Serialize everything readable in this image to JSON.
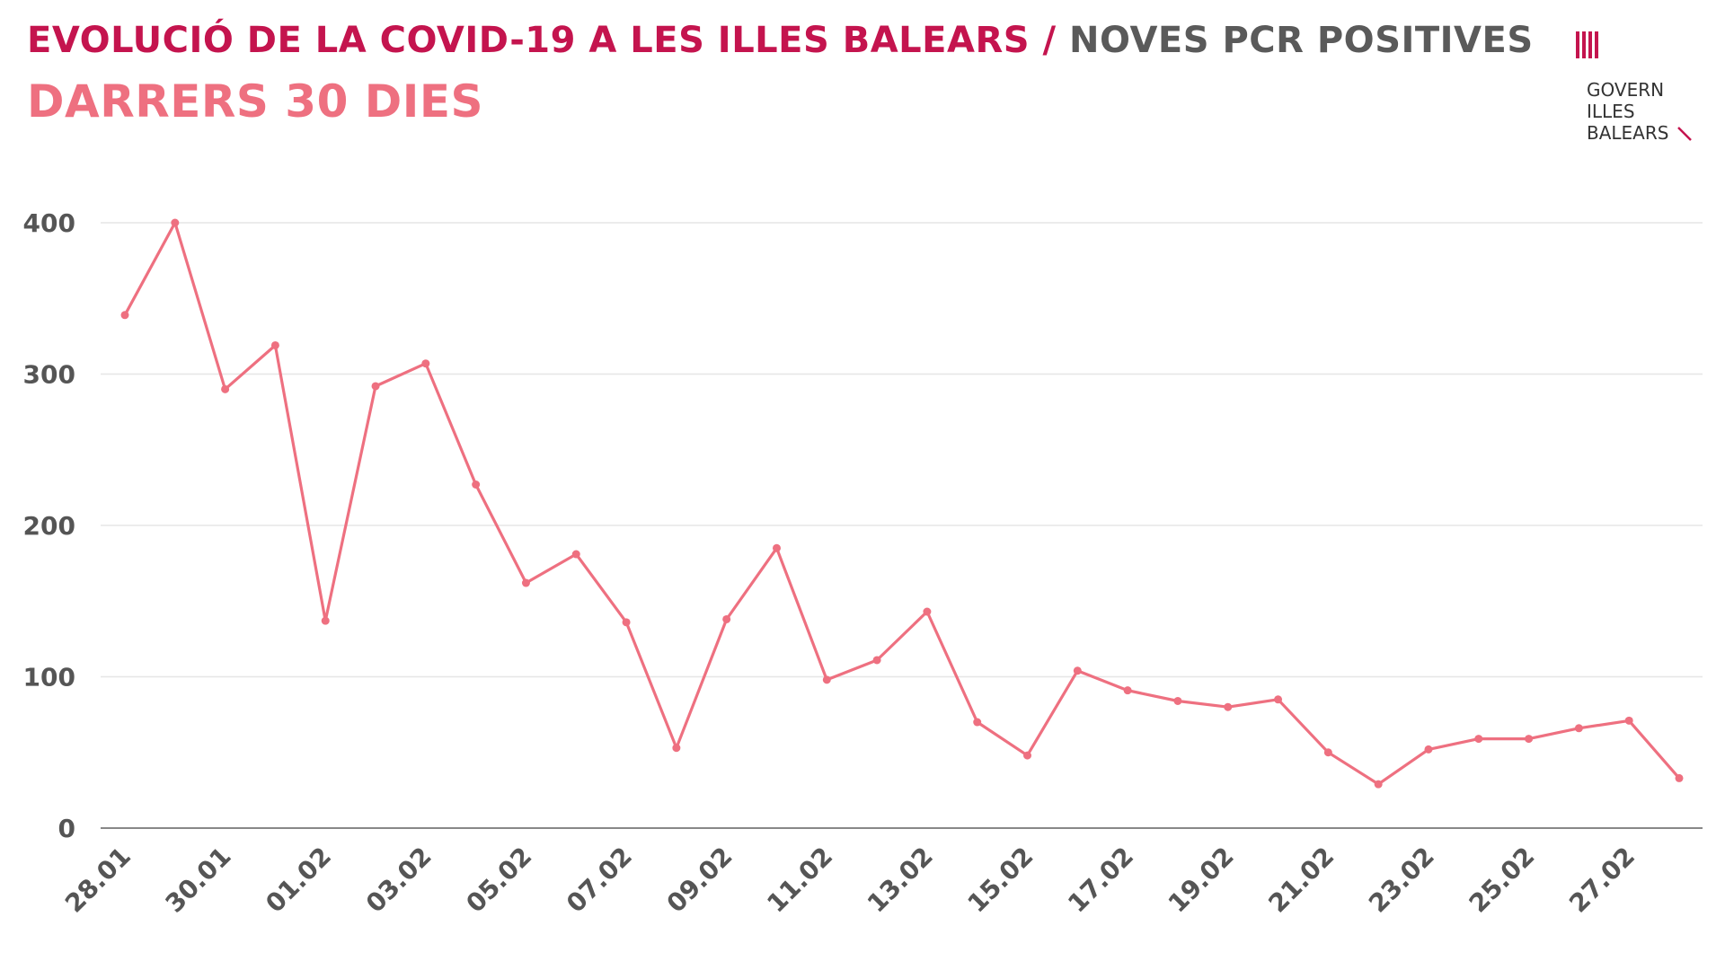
{
  "header": {
    "title_main": "EVOLUCIÓ DE LA COVID-19 A LES ILLES BALEARS",
    "title_separator": "/",
    "title_sub": "NOVES PCR POSITIVES",
    "subtitle": "DARRERS 30 DIES"
  },
  "logo": {
    "line1": "GOVERN",
    "line2": "ILLES",
    "line3": "BALEARS",
    "icon": "govern-illes-balears-emblem"
  },
  "colors": {
    "title": "#c4144e",
    "title_sub": "#5a5a5a",
    "subtitle": "#ee7080",
    "series": "#ee7080",
    "grid": "#e6e6e6",
    "axis": "#888888"
  },
  "chart_data": {
    "type": "line",
    "title": "",
    "xlabel": "",
    "ylabel": "",
    "ylim": [
      0,
      400
    ],
    "yticks": [
      0,
      100,
      200,
      300,
      400
    ],
    "grid": true,
    "legend": "none",
    "x": [
      "28.01",
      "29.01",
      "30.01",
      "31.01",
      "01.02",
      "02.02",
      "03.02",
      "04.02",
      "05.02",
      "06.02",
      "07.02",
      "08.02",
      "09.02",
      "10.02",
      "11.02",
      "12.02",
      "13.02",
      "14.02",
      "15.02",
      "16.02",
      "17.02",
      "18.02",
      "19.02",
      "20.02",
      "21.02",
      "22.02",
      "23.02",
      "24.02",
      "25.02",
      "26.02",
      "27.02",
      "28.02"
    ],
    "xtick_labels": [
      "28.01",
      "30.01",
      "01.02",
      "03.02",
      "05.02",
      "07.02",
      "09.02",
      "11.02",
      "13.02",
      "15.02",
      "17.02",
      "19.02",
      "21.02",
      "23.02",
      "25.02",
      "27.02"
    ],
    "series": [
      {
        "values": [
          339,
          400,
          290,
          319,
          137,
          292,
          307,
          227,
          162,
          181,
          136,
          53,
          138,
          185,
          98,
          111,
          143,
          70,
          48,
          104,
          91,
          84,
          80,
          85,
          50,
          29,
          52,
          59,
          59,
          66,
          71,
          33
        ]
      }
    ]
  }
}
